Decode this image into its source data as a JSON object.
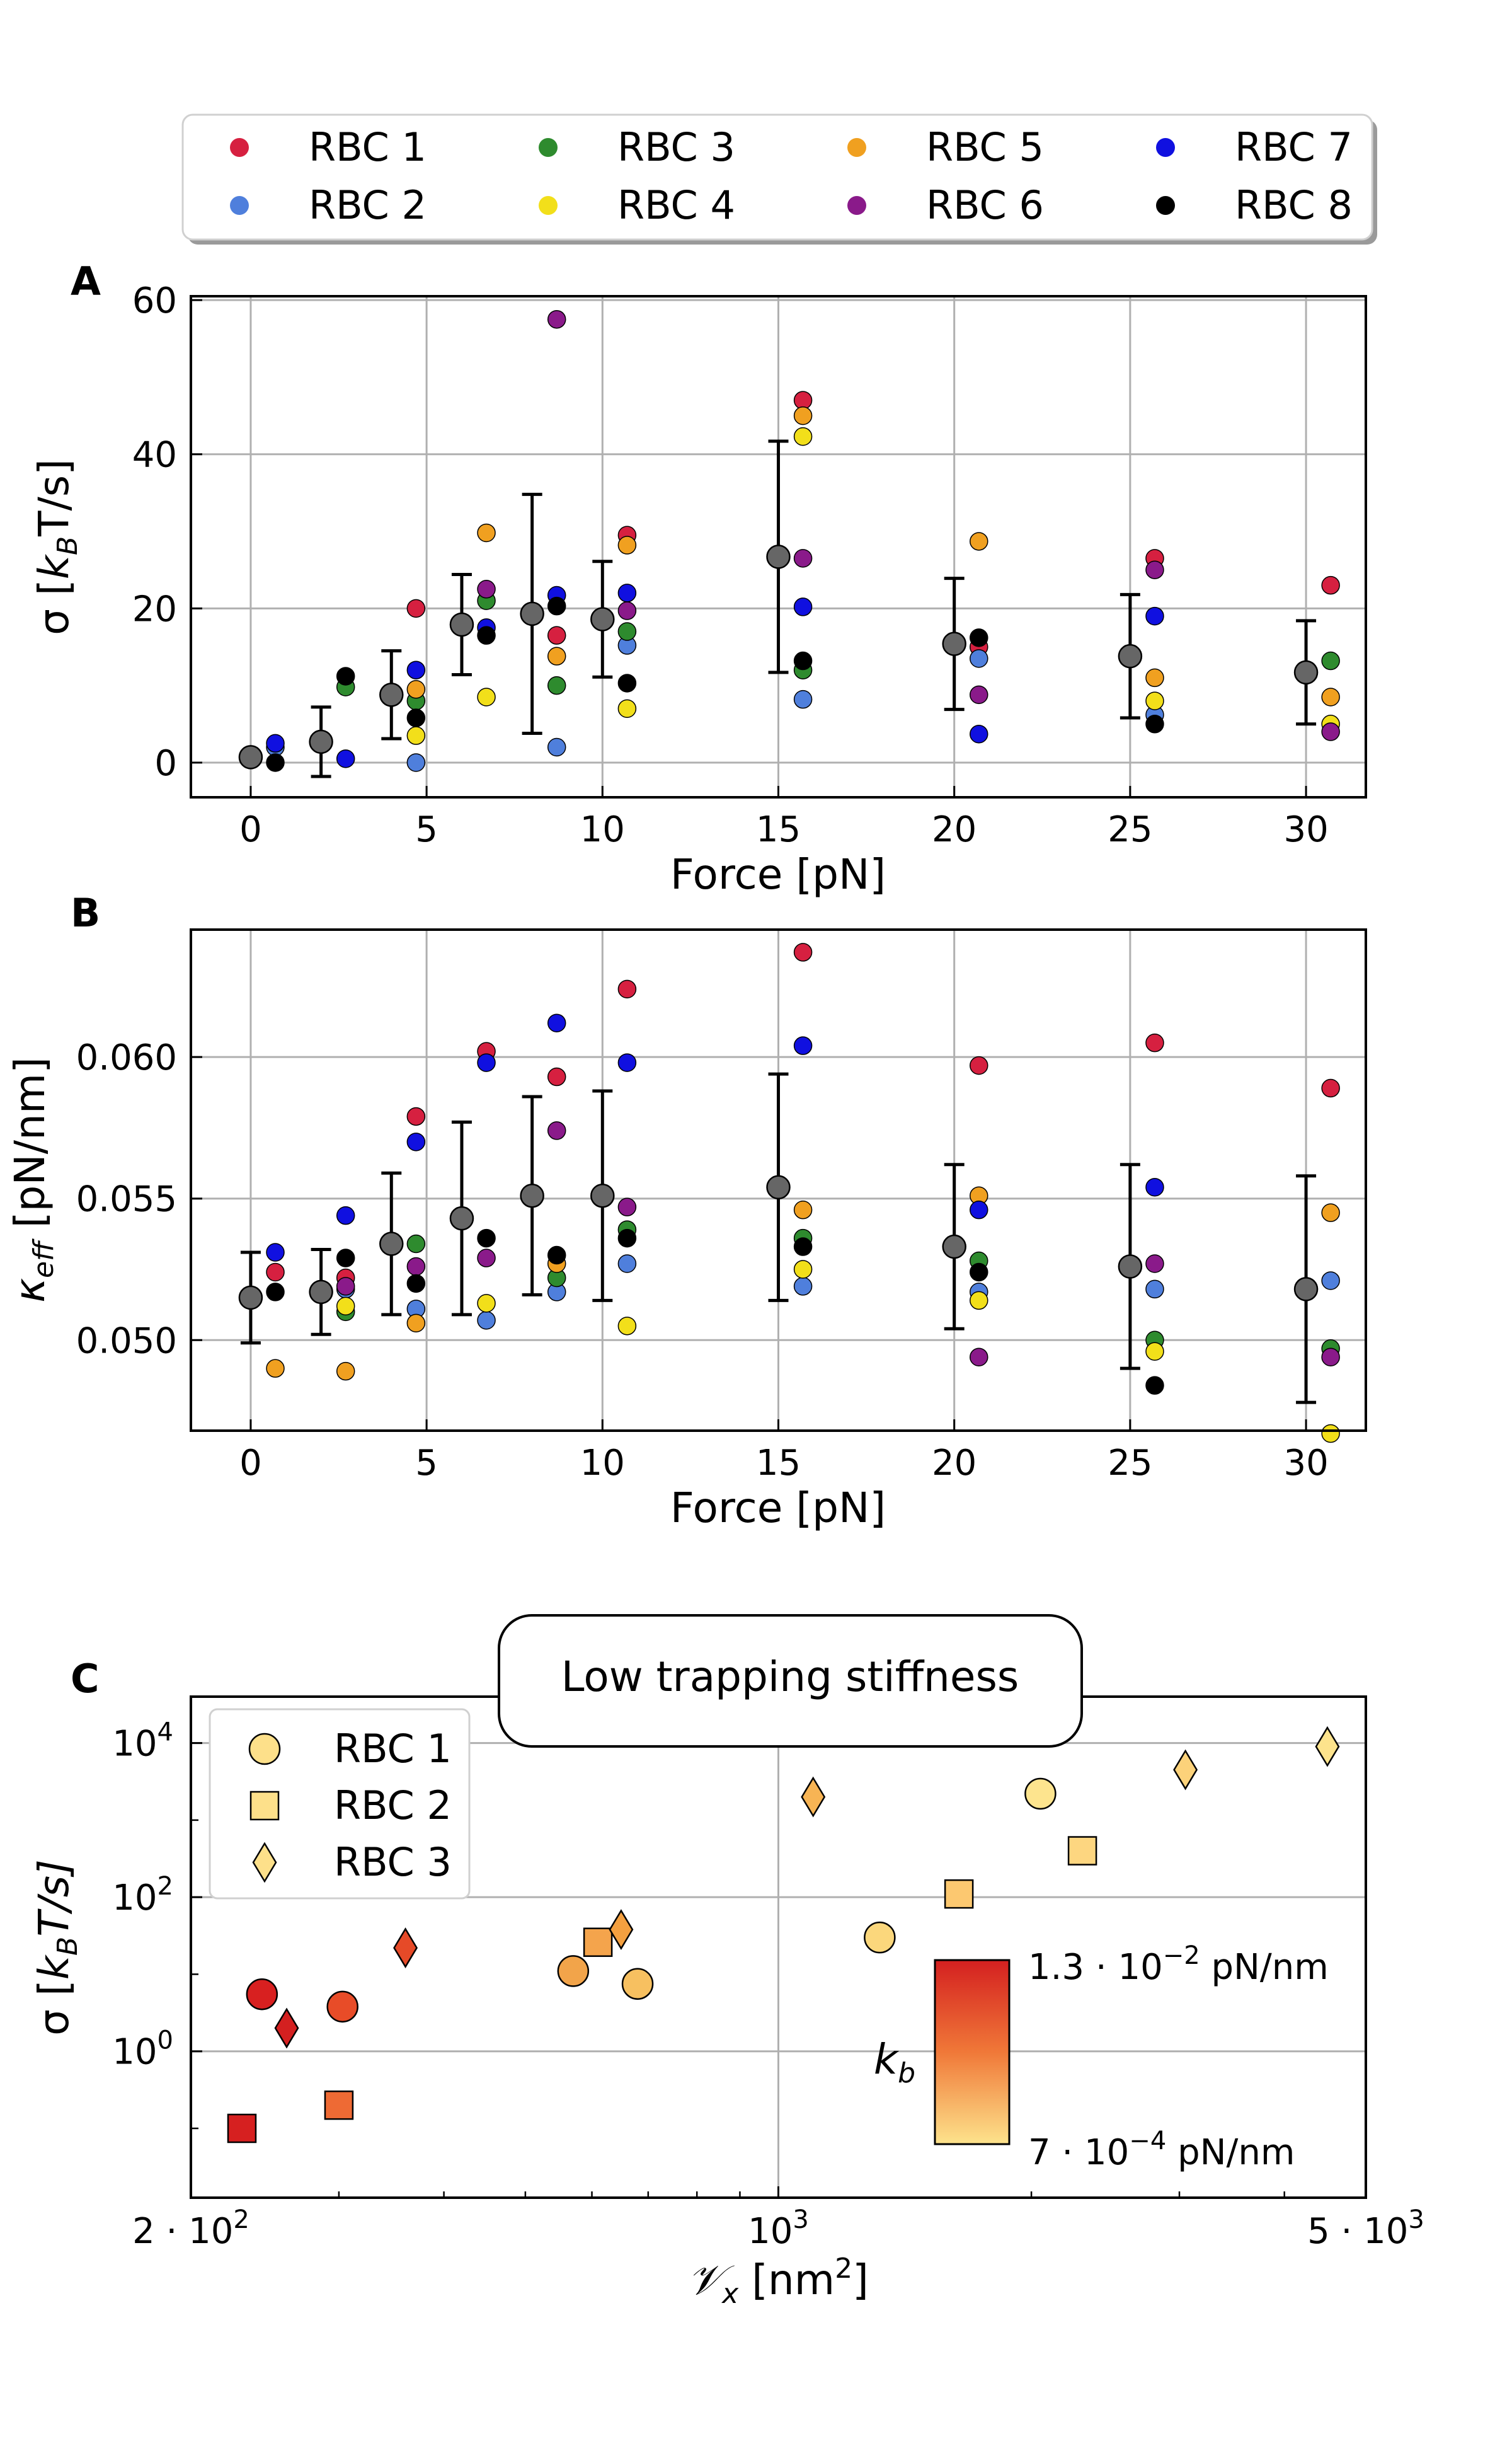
{
  "legend_top": {
    "entries": [
      {
        "label": "RBC 1",
        "color": "#d62040"
      },
      {
        "label": "RBC 2",
        "color": "#4f7fdc"
      },
      {
        "label": "RBC 3",
        "color": "#2e8b2e"
      },
      {
        "label": "RBC 4",
        "color": "#f2df1a"
      },
      {
        "label": "RBC 5",
        "color": "#f0a020"
      },
      {
        "label": "RBC 6",
        "color": "#8a1a8a"
      },
      {
        "label": "RBC 7",
        "color": "#1010e0"
      },
      {
        "label": "RBC 8",
        "color": "#000000"
      }
    ]
  },
  "chart_data": [
    {
      "panel": "A",
      "type": "scatter",
      "xlabel": "Force [pN]",
      "ylabel": "σ [k_B T/s]",
      "ylabel_parts": {
        "pre": "σ [",
        "k": "k",
        "sub": "B",
        "post": "T/s]"
      },
      "xlim": [
        -1.7,
        31.7
      ],
      "ylim": [
        -4.5,
        60.5
      ],
      "xticks": [
        0,
        5,
        10,
        15,
        20,
        25,
        30
      ],
      "xtick_labels": [
        "0",
        "5",
        "10",
        "15",
        "20",
        "25",
        "30"
      ],
      "yticks": [
        0,
        20,
        40,
        60
      ],
      "ytick_labels": [
        "0",
        "20",
        "40",
        "60"
      ],
      "grid": true,
      "mean": {
        "x": [
          0,
          2,
          4,
          6,
          8,
          10,
          15,
          20,
          25,
          30
        ],
        "y": [
          0.7,
          2.7,
          8.8,
          17.9,
          19.3,
          18.6,
          26.7,
          15.4,
          13.8,
          11.7
        ],
        "err": [
          0.3,
          4.5,
          5.7,
          6.5,
          15.5,
          7.5,
          15.0,
          8.5,
          8.0,
          6.7
        ]
      },
      "series": [
        {
          "name": "RBC 1",
          "x": [
            4.7,
            8.7,
            10.7,
            15.7,
            20.7,
            25.7,
            30.7
          ],
          "y": [
            20,
            16.5,
            29.5,
            47,
            15,
            26.5,
            23
          ]
        },
        {
          "name": "RBC 2",
          "x": [
            0.7,
            4.7,
            8.7,
            10.7,
            15.7,
            20.7,
            25.7
          ],
          "y": [
            2,
            0,
            2,
            15.2,
            8.2,
            13.5,
            6.2
          ]
        },
        {
          "name": "RBC 3",
          "x": [
            2.7,
            4.7,
            6.7,
            8.7,
            10.7,
            15.7,
            30.7
          ],
          "y": [
            9.8,
            8,
            21,
            10,
            17,
            12,
            13.2
          ]
        },
        {
          "name": "RBC 4",
          "x": [
            4.7,
            6.7,
            10.7,
            15.7,
            25.7,
            30.7
          ],
          "y": [
            3.5,
            8.5,
            7,
            42.3,
            8,
            5
          ]
        },
        {
          "name": "RBC 5",
          "x": [
            4.7,
            6.7,
            8.7,
            10.7,
            15.7,
            20.7,
            25.7,
            30.7
          ],
          "y": [
            9.5,
            29.8,
            13.8,
            28.2,
            45,
            28.7,
            11,
            8.5
          ]
        },
        {
          "name": "RBC 6",
          "x": [
            6.7,
            8.7,
            10.7,
            15.7,
            20.7,
            25.7,
            30.7
          ],
          "y": [
            22.5,
            57.5,
            19.7,
            26.5,
            8.8,
            25,
            4
          ]
        },
        {
          "name": "RBC 7",
          "x": [
            0.7,
            2.7,
            4.7,
            6.7,
            8.7,
            10.7,
            15.7,
            20.7,
            25.7
          ],
          "y": [
            2.5,
            0.5,
            12,
            17.5,
            21.7,
            22,
            20.2,
            3.7,
            19
          ]
        },
        {
          "name": "RBC 8",
          "x": [
            0.7,
            2.7,
            4.7,
            6.7,
            8.7,
            10.7,
            15.7,
            20.7,
            25.7
          ],
          "y": [
            0,
            11.2,
            5.8,
            16.5,
            20.3,
            10.3,
            13.2,
            16.2,
            5
          ]
        }
      ]
    },
    {
      "panel": "B",
      "type": "scatter",
      "xlabel": "Force [pN]",
      "ylabel": "κ_eff [pN/nm]",
      "ylabel_parts": {
        "k": "κ",
        "sub": "eff",
        "post": " [pN/nm]"
      },
      "xlim": [
        -1.7,
        31.7
      ],
      "ylim": [
        0.0468,
        0.0645
      ],
      "xticks": [
        0,
        5,
        10,
        15,
        20,
        25,
        30
      ],
      "xtick_labels": [
        "0",
        "5",
        "10",
        "15",
        "20",
        "25",
        "30"
      ],
      "yticks": [
        0.05,
        0.055,
        0.06
      ],
      "ytick_labels": [
        "0.050",
        "0.055",
        "0.060"
      ],
      "grid": true,
      "mean": {
        "x": [
          0,
          2,
          4,
          6,
          8,
          10,
          15,
          20,
          25,
          30
        ],
        "y": [
          0.0515,
          0.0517,
          0.0534,
          0.0543,
          0.0551,
          0.0551,
          0.0554,
          0.0533,
          0.0526,
          0.0518
        ],
        "err": [
          0.0016,
          0.0015,
          0.0025,
          0.0034,
          0.0035,
          0.0037,
          0.004,
          0.0029,
          0.0036,
          0.004
        ]
      },
      "series": [
        {
          "name": "RBC 1",
          "x": [
            0.7,
            2.7,
            4.7,
            6.7,
            8.7,
            10.7,
            15.7,
            20.7,
            25.7,
            30.7
          ],
          "y": [
            0.0524,
            0.0522,
            0.0579,
            0.0602,
            0.0593,
            0.0624,
            0.0637,
            0.0597,
            0.0605,
            0.0589
          ]
        },
        {
          "name": "RBC 2",
          "x": [
            2.7,
            4.7,
            6.7,
            8.7,
            10.7,
            15.7,
            20.7,
            25.7,
            30.7
          ],
          "y": [
            0.0518,
            0.0511,
            0.0507,
            0.0517,
            0.0527,
            0.0519,
            0.0517,
            0.0518,
            0.0521
          ]
        },
        {
          "name": "RBC 3",
          "x": [
            2.7,
            4.7,
            8.7,
            10.7,
            15.7,
            20.7,
            25.7,
            30.7
          ],
          "y": [
            0.051,
            0.0534,
            0.0522,
            0.0539,
            0.0536,
            0.0528,
            0.05,
            0.0497
          ]
        },
        {
          "name": "RBC 4",
          "x": [
            2.7,
            6.7,
            10.7,
            15.7,
            20.7,
            25.7,
            30.7
          ],
          "y": [
            0.0512,
            0.0513,
            0.0505,
            0.0525,
            0.0514,
            0.0496,
            0.0467
          ]
        },
        {
          "name": "RBC 5",
          "x": [
            0.7,
            2.7,
            4.7,
            8.7,
            15.7,
            20.7,
            30.7
          ],
          "y": [
            0.049,
            0.0489,
            0.0506,
            0.0527,
            0.0546,
            0.0551,
            0.0545
          ]
        },
        {
          "name": "RBC 6",
          "x": [
            2.7,
            4.7,
            6.7,
            8.7,
            10.7,
            20.7,
            25.7,
            30.7
          ],
          "y": [
            0.0519,
            0.0526,
            0.0529,
            0.0574,
            0.0547,
            0.0494,
            0.0527,
            0.0494
          ]
        },
        {
          "name": "RBC 7",
          "x": [
            0.7,
            2.7,
            4.7,
            6.7,
            8.7,
            10.7,
            15.7,
            20.7,
            25.7
          ],
          "y": [
            0.0531,
            0.0544,
            0.057,
            0.0598,
            0.0612,
            0.0598,
            0.0604,
            0.0546,
            0.0554
          ]
        },
        {
          "name": "RBC 8",
          "x": [
            0.7,
            2.7,
            4.7,
            6.7,
            8.7,
            10.7,
            15.7,
            20.7,
            25.7
          ],
          "y": [
            0.0517,
            0.0529,
            0.052,
            0.0536,
            0.053,
            0.0536,
            0.0533,
            0.0524,
            0.0484
          ]
        }
      ]
    },
    {
      "panel": "C",
      "type": "scatter",
      "xscale": "log",
      "yscale": "log",
      "title_box": "Low trapping stiffness",
      "xlabel": "V_x [nm²]",
      "xlabel_parts": {
        "sym": "𝒱",
        "sub": "x",
        "post": " [nm",
        "sup": "2",
        "end": "]"
      },
      "ylabel": "σ [k_B T/s]",
      "ylabel_parts": {
        "pre": "σ [",
        "k": "k",
        "sub": "B",
        "post": "T/s]"
      },
      "xlim": [
        200,
        5000
      ],
      "ylim": [
        0.0126,
        40000
      ],
      "xtick_labels": [
        {
          "x": 200,
          "base": "2 · 10",
          "exp": "2"
        },
        {
          "x": 1000,
          "base": "10",
          "exp": "3"
        },
        {
          "x": 5000,
          "base": "5 · 10",
          "exp": "3"
        }
      ],
      "ytick_labels": [
        {
          "y": 1,
          "base": "10",
          "exp": "0"
        },
        {
          "y": 100,
          "base": "10",
          "exp": "2"
        },
        {
          "y": 10000,
          "base": "10",
          "exp": "4"
        }
      ],
      "grid": true,
      "legend": [
        "RBC 1",
        "RBC 2",
        "RBC 3"
      ],
      "colorbar": {
        "label": "k_b",
        "top_label": {
          "base": "1.3 · 10",
          "exp": "−2",
          "unit": " pN/nm"
        },
        "bottom_label": {
          "base": "7 · 10",
          "exp": "−4",
          "unit": " pN/nm"
        },
        "colors": [
          "#d42020",
          "#f07838",
          "#fde38c"
        ]
      },
      "series": [
        {
          "name": "RBC 1",
          "marker": "circle",
          "x": [
            243,
            303,
            570,
            680,
            1320,
            2050
          ],
          "y": [
            5.5,
            3.8,
            11,
            7.5,
            30,
            2200
          ],
          "color": [
            "#d82020",
            "#e84c28",
            "#f2a44a",
            "#f7c060",
            "#fbd77c",
            "#fde48e"
          ]
        },
        {
          "name": "RBC 2",
          "marker": "square",
          "x": [
            230,
            300,
            610,
            1640,
            2300
          ],
          "y": [
            0.1,
            0.2,
            26,
            110,
            400
          ],
          "color": [
            "#d62020",
            "#ee6a34",
            "#f4a44c",
            "#fcc870",
            "#fdd680"
          ]
        },
        {
          "name": "RBC 3",
          "marker": "diamond",
          "x": [
            260,
            360,
            650,
            1100,
            3050,
            4500
          ],
          "y": [
            2,
            22,
            38,
            2000,
            4500,
            9000
          ],
          "color": [
            "#d42020",
            "#e64a28",
            "#f4a040",
            "#f7b454",
            "#fcd27a",
            "#fde38c"
          ]
        }
      ]
    }
  ]
}
